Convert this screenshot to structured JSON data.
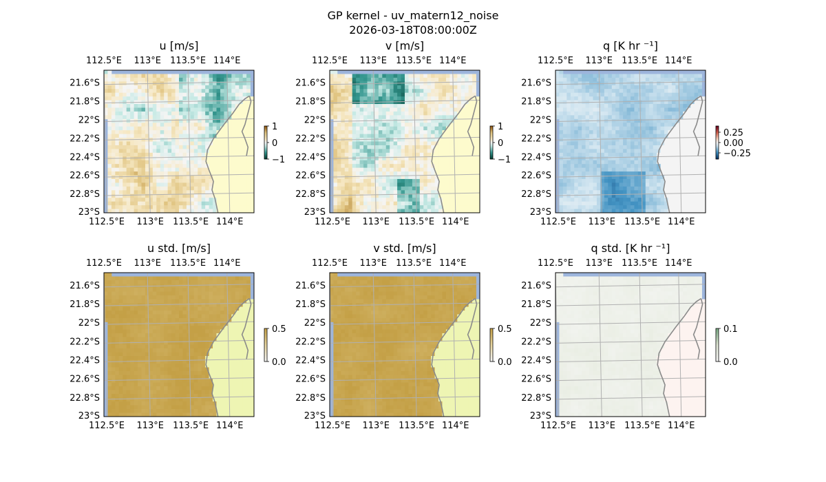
{
  "figure": {
    "title": "GP kernel - uv_matern12_noise",
    "subtitle": "2026-03-18T08:00:00Z"
  },
  "colors": {
    "ocean": "#9db5dc",
    "land_light": "#fdfbcd",
    "land_mid": "#eef5b3",
    "land_q": "#f4f4f4",
    "coast": "#8a8a8a",
    "grid": "#b0b0b0"
  },
  "chart_data": [
    {
      "type": "heatmap",
      "id": "u",
      "title": "u [m/s]",
      "colormap": "BrBG",
      "lon_ticks": [
        "112.5°E",
        "113°E",
        "113.5°E",
        "114°E"
      ],
      "lat_ticks": [
        "21.6°S",
        "21.8°S",
        "22°S",
        "22.2°S",
        "22.4°S",
        "22.6°S",
        "22.8°S",
        "23°S"
      ],
      "extent": {
        "lon": [
          112.4,
          114.2
        ],
        "lat": [
          -23.0,
          -21.5
        ]
      },
      "colorbar": {
        "range": [
          -1,
          1
        ],
        "ticks": [
          "1",
          "0",
          "−1"
        ]
      },
      "value_pattern": "mostly -0.4 to 0.5, tan positive patches centre-left and bottom, light teal negatives north-east"
    },
    {
      "type": "heatmap",
      "id": "v",
      "title": "v [m/s]",
      "colormap": "BrBG",
      "lon_ticks": [
        "112.5°E",
        "113°E",
        "113.5°E",
        "114°E"
      ],
      "lat_ticks": [
        "21.6°S",
        "21.8°S",
        "22°S",
        "22.2°S",
        "22.4°S",
        "22.6°S",
        "22.8°S",
        "23°S"
      ],
      "extent": {
        "lon": [
          112.4,
          114.2
        ],
        "lat": [
          -23.0,
          -21.5
        ]
      },
      "colorbar": {
        "range": [
          -1,
          1
        ],
        "ticks": [
          "1",
          "0",
          "−1"
        ]
      },
      "value_pattern": "strong negative (teal, about -0.8) across the north, tan positives west, teal patches south"
    },
    {
      "type": "heatmap",
      "id": "q",
      "title": "q [K hr ⁻¹]",
      "colormap": "RdBu",
      "lon_ticks": [
        "112.5°E",
        "113°E",
        "113.5°E",
        "114°E"
      ],
      "lat_ticks": [
        "21.6°S",
        "21.8°S",
        "22°S",
        "22.2°S",
        "22.4°S",
        "22.6°S",
        "22.8°S",
        "23°S"
      ],
      "extent": {
        "lon": [
          112.4,
          114.2
        ],
        "lat": [
          -23.0,
          -21.5
        ]
      },
      "colorbar": {
        "range": [
          -0.35,
          0.35
        ],
        "ticks": [
          "0.25",
          "0.00",
          "−0.25"
        ]
      },
      "value_pattern": "mostly -0.05 to -0.15 over the sea, about -0.2 near the south; near zero over land"
    },
    {
      "type": "heatmap",
      "id": "ustd",
      "title": "u std. [m/s]",
      "colormap": "BrBG",
      "lon_ticks": [
        "112.5°E",
        "113°E",
        "113.5°E",
        "114°E"
      ],
      "lat_ticks": [
        "21.6°S",
        "21.8°S",
        "22°S",
        "22.2°S",
        "22.4°S",
        "22.6°S",
        "22.8°S",
        "23°S"
      ],
      "extent": {
        "lon": [
          112.4,
          114.2
        ],
        "lat": [
          -23.0,
          -21.5
        ]
      },
      "colorbar": {
        "range": [
          0,
          0.5
        ],
        "ticks": [
          "0.5",
          "0.0"
        ]
      },
      "value_pattern": "about 0.45 to 0.5 over the sea, low over land"
    },
    {
      "type": "heatmap",
      "id": "vstd",
      "title": "v std. [m/s]",
      "colormap": "BrBG",
      "lon_ticks": [
        "112.5°E",
        "113°E",
        "113.5°E",
        "114°E"
      ],
      "lat_ticks": [
        "21.6°S",
        "21.8°S",
        "22°S",
        "22.2°S",
        "22.4°S",
        "22.6°S",
        "22.8°S",
        "23°S"
      ],
      "extent": {
        "lon": [
          112.4,
          114.2
        ],
        "lat": [
          -23.0,
          -21.5
        ]
      },
      "colorbar": {
        "range": [
          0,
          0.5
        ],
        "ticks": [
          "0.5",
          "0.0"
        ]
      },
      "value_pattern": "about 0.45 to 0.5 over the sea, low over land"
    },
    {
      "type": "heatmap",
      "id": "qstd",
      "title": "q std. [K hr ⁻¹]",
      "colormap": "PiYG",
      "lon_ticks": [
        "112.5°E",
        "113°E",
        "113.5°E",
        "114°E"
      ],
      "lat_ticks": [
        "21.6°S",
        "21.8°S",
        "22°S",
        "22.2°S",
        "22.4°S",
        "22.6°S",
        "22.8°S",
        "23°S"
      ],
      "extent": {
        "lon": [
          112.4,
          114.2
        ],
        "lat": [
          -23.0,
          -21.5
        ]
      },
      "colorbar": {
        "range": [
          0,
          0.1
        ],
        "ticks": [
          "0.1",
          "0.0"
        ]
      },
      "value_pattern": "about 0.01 to 0.03 over the sea, near zero over land"
    }
  ]
}
